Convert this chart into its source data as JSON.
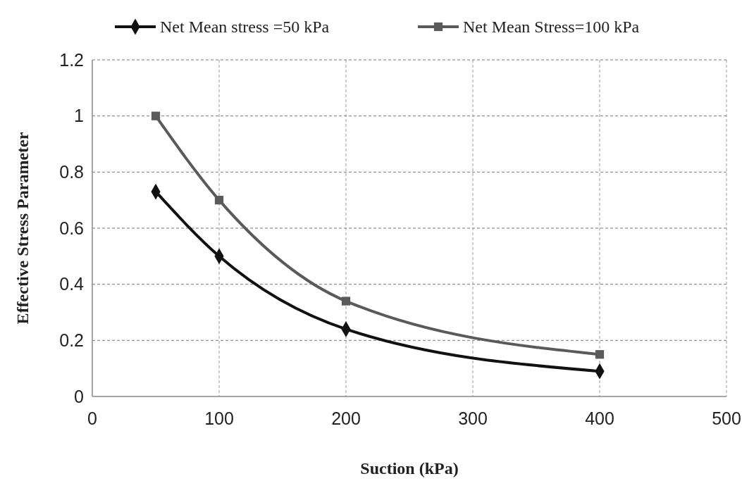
{
  "chart_data": {
    "type": "line",
    "xlabel": "Suction (kPa)",
    "ylabel": "Effective Stress Parameter",
    "x": [
      50,
      100,
      200,
      400
    ],
    "series": [
      {
        "name": "Net  Mean stress =50 kPa",
        "color": "#111111",
        "marker": "diamond",
        "values": [
          0.73,
          0.5,
          0.24,
          0.09
        ]
      },
      {
        "name": "Net  Mean Stress=100 kPa",
        "color": "#5a5a5a",
        "marker": "square",
        "values": [
          1.0,
          0.7,
          0.34,
          0.15
        ]
      }
    ],
    "xlim": [
      0,
      500
    ],
    "xticks": [
      0,
      100,
      200,
      300,
      400,
      500
    ],
    "ylim": [
      0,
      1.2
    ],
    "yticks": [
      0,
      {
        "value": 0.2,
        "label": "0.2"
      },
      {
        "value": 0.4,
        "label": "0.4"
      },
      {
        "value": 0.6,
        "label": "0.6"
      },
      {
        "value": 0.8,
        "label": "0.8"
      },
      1,
      {
        "value": 1.2,
        "label": "1.2"
      }
    ],
    "grid": true,
    "legend": "top",
    "line_style": "solid"
  }
}
